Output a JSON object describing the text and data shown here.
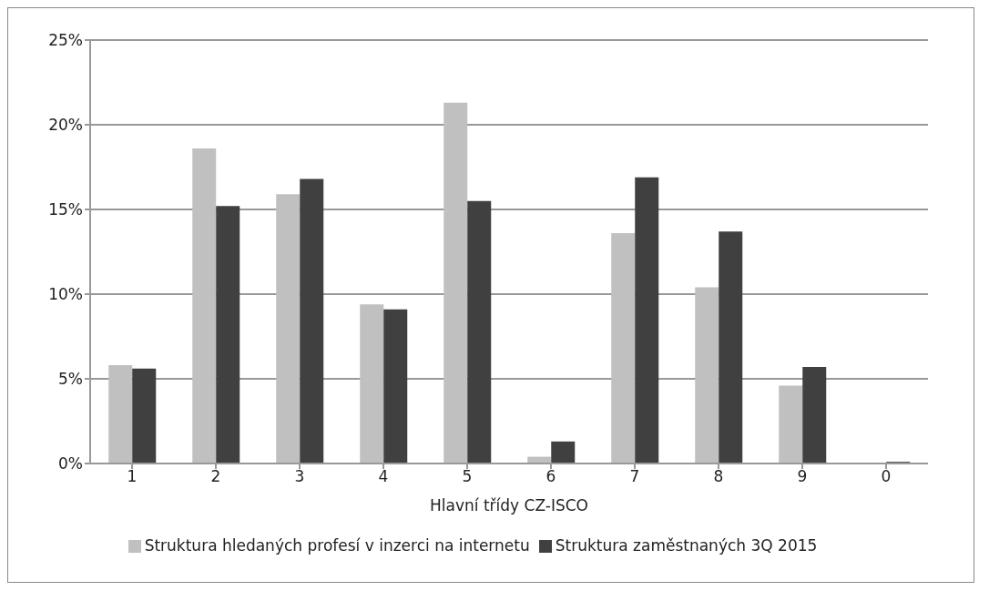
{
  "chart_data": {
    "type": "bar",
    "xlabel": "Hlavní třídy CZ-ISCO",
    "categories": [
      "1",
      "2",
      "3",
      "4",
      "5",
      "6",
      "7",
      "8",
      "9",
      "0"
    ],
    "series": [
      {
        "name": "Struktura hledaných profesí v inzerci na internetu",
        "color": "#c0c0c0",
        "values": [
          5.8,
          18.6,
          15.9,
          9.4,
          21.3,
          0.4,
          13.6,
          10.4,
          4.6,
          0.0
        ]
      },
      {
        "name": "Struktura zaměstnaných 3Q 2015",
        "color": "#404040",
        "values": [
          5.6,
          15.2,
          16.8,
          9.1,
          15.5,
          1.3,
          16.9,
          13.7,
          5.7,
          0.1
        ]
      }
    ],
    "ylim": [
      0,
      25
    ],
    "yticks": [
      {
        "value": 0,
        "label": "0%"
      },
      {
        "value": 5,
        "label": "5%"
      },
      {
        "value": 10,
        "label": "10%"
      },
      {
        "value": 15,
        "label": "15%"
      },
      {
        "value": 20,
        "label": "20%"
      },
      {
        "value": 25,
        "label": "25%"
      }
    ],
    "grid": "y",
    "legend": "bottom"
  }
}
